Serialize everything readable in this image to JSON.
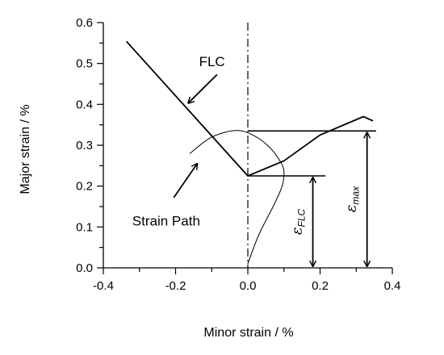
{
  "chart_data": {
    "type": "line",
    "title": "",
    "xlabel": "Minor strain / %",
    "ylabel": "Major strain / %",
    "xlim": [
      -0.4,
      0.4
    ],
    "ylim": [
      0.0,
      0.6
    ],
    "x_ticks": [
      "-0.4",
      "-0.2",
      "0.0",
      "0.2",
      "0.4"
    ],
    "x_tick_values": [
      -0.4,
      -0.2,
      0.0,
      0.2,
      0.4
    ],
    "y_ticks": [
      "0.0",
      "0.1",
      "0.2",
      "0.3",
      "0.4",
      "0.5",
      "0.6"
    ],
    "y_tick_values": [
      0.0,
      0.1,
      0.2,
      0.3,
      0.4,
      0.5,
      0.6
    ],
    "grid": false,
    "series": [
      {
        "name": "FLC",
        "style": "solid-thick",
        "x": [
          -0.335,
          0.0,
          0.1,
          0.2,
          0.32,
          0.345
        ],
        "y": [
          0.553,
          0.225,
          0.262,
          0.325,
          0.37,
          0.36
        ]
      },
      {
        "name": "Strain Path",
        "style": "solid-thin",
        "x": [
          0.0,
          0.03,
          0.07,
          0.095,
          0.1,
          0.09,
          0.06,
          0.02,
          -0.03,
          -0.1,
          -0.16
        ],
        "y": [
          0.01,
          0.08,
          0.15,
          0.2,
          0.235,
          0.26,
          0.295,
          0.322,
          0.336,
          0.32,
          0.28
        ]
      }
    ],
    "reference_lines": [
      {
        "orientation": "vertical",
        "x": 0.0,
        "style": "dash-dot"
      },
      {
        "orientation": "horizontal",
        "y": 0.335,
        "x_from": 0.0,
        "x_to": 0.355
      },
      {
        "orientation": "horizontal",
        "y": 0.225,
        "x_from": 0.0,
        "x_to": 0.215
      }
    ],
    "annotations": [
      {
        "text": "FLC",
        "x": -0.135,
        "y": 0.505
      },
      {
        "text": "Strain Path",
        "x": -0.32,
        "y": 0.115
      },
      {
        "text": "ε",
        "subscript": "FLC",
        "x": 0.18,
        "from_y": 0.0,
        "to_y": 0.225,
        "arrow": "double"
      },
      {
        "text": "ε",
        "subscript": "max",
        "x": 0.33,
        "from_y": 0.0,
        "to_y": 0.335,
        "arrow": "double"
      }
    ]
  }
}
